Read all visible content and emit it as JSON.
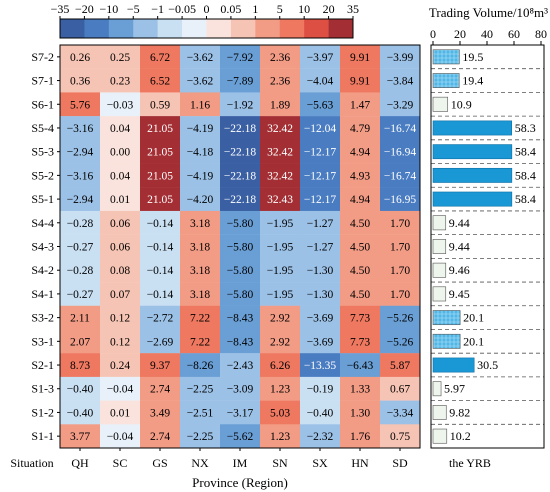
{
  "chart_data": [
    {
      "type": "heatmap",
      "row_header": "Situation",
      "xlabel": "Province (Region)",
      "columns": [
        "QH",
        "SC",
        "GS",
        "NX",
        "IM",
        "SN",
        "SX",
        "HN",
        "SD"
      ],
      "rows": [
        "S7-2",
        "S7-1",
        "S6-1",
        "S5-4",
        "S5-3",
        "S5-2",
        "S5-1",
        "S4-4",
        "S4-3",
        "S4-2",
        "S4-1",
        "S3-2",
        "S3-1",
        "S2-1",
        "S1-3",
        "S1-2",
        "S1-1"
      ],
      "values": [
        [
          "0.26",
          "0.25",
          "6.72",
          "−3.62",
          "−7.92",
          "2.36",
          "−3.97",
          "9.91",
          "−3.99"
        ],
        [
          "0.36",
          "0.23",
          "6.52",
          "−3.62",
          "−7.89",
          "2.36",
          "−4.04",
          "9.91",
          "−3.84"
        ],
        [
          "5.76",
          "−0.03",
          "0.59",
          "1.16",
          "−1.92",
          "1.89",
          "−5.63",
          "1.47",
          "−3.29"
        ],
        [
          "−3.16",
          "0.04",
          "21.05",
          "−4.19",
          "−22.18",
          "32.42",
          "−12.04",
          "4.79",
          "−16.74"
        ],
        [
          "−2.94",
          "0.00",
          "21.05",
          "−4.18",
          "−22.18",
          "32.42",
          "−12.17",
          "4.94",
          "−16.94"
        ],
        [
          "−3.16",
          "0.04",
          "21.05",
          "−4.19",
          "−22.18",
          "32.42",
          "−12.17",
          "4.93",
          "−16.74"
        ],
        [
          "−2.94",
          "0.01",
          "21.05",
          "−4.20",
          "−22.18",
          "32.43",
          "−12.17",
          "4.94",
          "−16.95"
        ],
        [
          "−0.28",
          "0.06",
          "−0.14",
          "3.18",
          "−5.80",
          "−1.95",
          "−1.27",
          "4.50",
          "1.70"
        ],
        [
          "−0.27",
          "0.06",
          "−0.14",
          "3.18",
          "−5.80",
          "−1.95",
          "−1.27",
          "4.50",
          "1.70"
        ],
        [
          "−0.28",
          "0.08",
          "−0.14",
          "3.18",
          "−5.80",
          "−1.95",
          "−1.30",
          "4.50",
          "1.70"
        ],
        [
          "−0.27",
          "0.07",
          "−0.14",
          "3.18",
          "−5.80",
          "−1.95",
          "−1.30",
          "4.50",
          "1.70"
        ],
        [
          "2.11",
          "0.12",
          "−2.72",
          "7.22",
          "−8.43",
          "2.92",
          "−3.69",
          "7.73",
          "−5.26"
        ],
        [
          "2.07",
          "0.12",
          "−2.69",
          "7.22",
          "−8.43",
          "2.92",
          "−3.69",
          "7.73",
          "−5.26"
        ],
        [
          "8.73",
          "0.24",
          "9.37",
          "−8.26",
          "−2.43",
          "6.26",
          "−13.35",
          "−6.43",
          "5.87"
        ],
        [
          "−0.40",
          "−0.04",
          "2.74",
          "−2.25",
          "−3.09",
          "1.23",
          "−0.19",
          "1.33",
          "0.67"
        ],
        [
          "−0.40",
          "0.01",
          "3.49",
          "−2.51",
          "−3.17",
          "5.03",
          "−0.40",
          "1.30",
          "−3.34"
        ],
        [
          "3.77",
          "−0.04",
          "2.74",
          "−2.25",
          "−5.62",
          "1.23",
          "−2.32",
          "1.76",
          "0.75"
        ]
      ],
      "colorbar": {
        "ticks": [
          "−35",
          "−20",
          "−10",
          "−5",
          "−1",
          "−0.05",
          "0",
          "0.05",
          "1",
          "5",
          "10",
          "20",
          "35"
        ],
        "colors": [
          "#3a5fa3",
          "#4a7cc2",
          "#6a9fd6",
          "#9cc1e6",
          "#c9dff2",
          "#e8f1f9",
          "#f9e3dc",
          "#f6c4b4",
          "#f29c86",
          "#ee7860",
          "#dd4f43",
          "#a32f34"
        ]
      }
    },
    {
      "type": "bar",
      "orientation": "horizontal",
      "title": "Trading Volume/10⁸m³",
      "xlabel": "the YRB",
      "xlim": [
        0,
        80
      ],
      "xticks": [
        "0",
        "20",
        "40",
        "60",
        "80"
      ],
      "categories": [
        "S7-2",
        "S7-1",
        "S6-1",
        "S5-4",
        "S5-3",
        "S5-2",
        "S5-1",
        "S4-4",
        "S4-3",
        "S4-2",
        "S4-1",
        "S3-2",
        "S3-1",
        "S2-1",
        "S1-3",
        "S1-2",
        "S1-1"
      ],
      "values": [
        19.5,
        19.4,
        10.9,
        58.3,
        58.4,
        58.4,
        58.4,
        9.44,
        9.44,
        9.46,
        9.45,
        20.1,
        20.1,
        30.5,
        5.97,
        9.82,
        10.2
      ],
      "value_labels": [
        "19.5",
        "19.4",
        "10.9",
        "58.3",
        "58.4",
        "58.4",
        "58.4",
        "9.44",
        "9.44",
        "9.46",
        "9.45",
        "20.1",
        "20.1",
        "30.5",
        "5.97",
        "9.82",
        "10.2"
      ]
    }
  ]
}
